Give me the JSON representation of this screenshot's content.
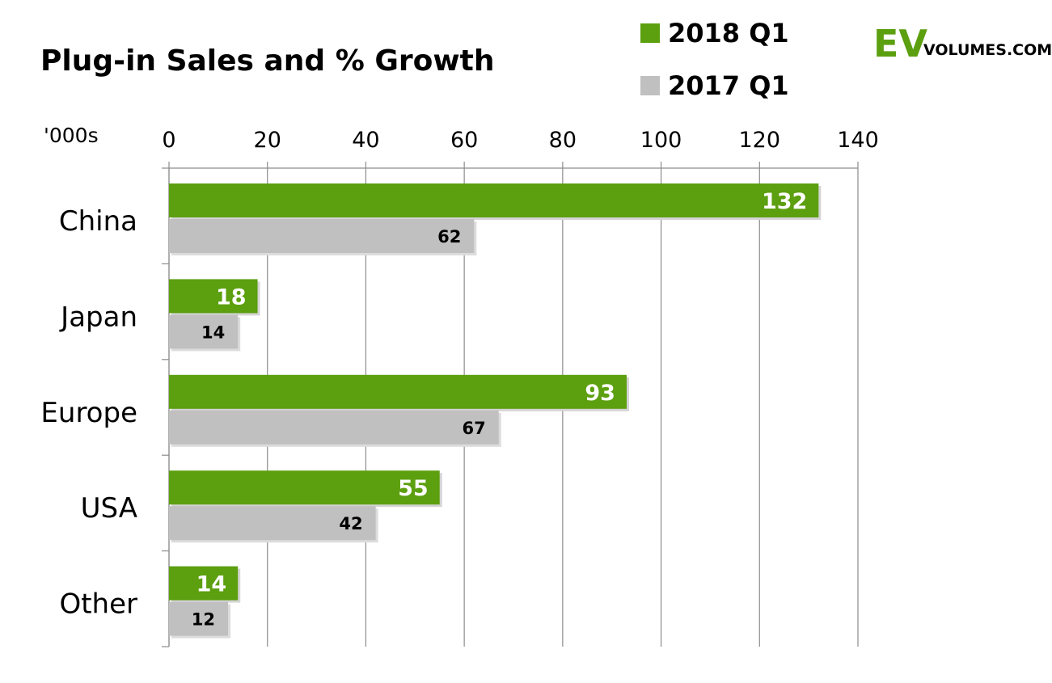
{
  "logo": {
    "main": "EV",
    "sub": "VOLUMES.COM",
    "color": "#5c9f0f"
  },
  "chart_data": {
    "type": "bar",
    "orientation": "horizontal",
    "title": "Plug-in Sales and % Growth",
    "unit_label": "'000s",
    "categories": [
      "China",
      "Japan",
      "Europe",
      "USA",
      "Other"
    ],
    "series": [
      {
        "name": "2018 Q1",
        "color": "#5c9f0f",
        "values": [
          132,
          18,
          93,
          55,
          14
        ]
      },
      {
        "name": "2017 Q1",
        "color": "#c0c0c0",
        "values": [
          62,
          14,
          67,
          42,
          12
        ]
      }
    ],
    "xlim": [
      0,
      140
    ],
    "xticks": [
      0,
      20,
      40,
      60,
      80,
      100,
      120,
      140
    ],
    "grid": true,
    "legend_position": "top-right"
  }
}
